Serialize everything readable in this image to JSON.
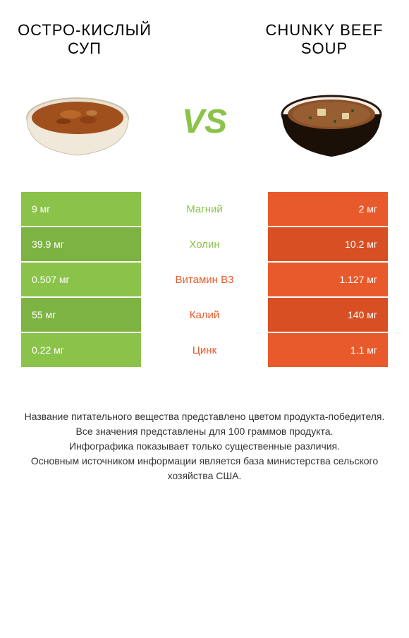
{
  "titles": {
    "left": "Остро-кислый суп",
    "right": "Chunky Beef Soup"
  },
  "vs_label": "VS",
  "colors": {
    "green": "#8bc34a",
    "green_dark": "#7cb342",
    "orange": "#e85a2c",
    "orange_dark": "#d84f24",
    "vs_color": "#8bc34a"
  },
  "rows": [
    {
      "left": "9 мг",
      "label": "Магний",
      "right": "2 мг",
      "left_color": "#8bc34a",
      "right_color": "#e85a2c",
      "label_color": "#8bc34a",
      "dark": false
    },
    {
      "left": "39.9 мг",
      "label": "Холин",
      "right": "10.2 мг",
      "left_color": "#7cb342",
      "right_color": "#d84f24",
      "label_color": "#8bc34a",
      "dark": true
    },
    {
      "left": "0.507 мг",
      "label": "Витамин B3",
      "right": "1.127 мг",
      "left_color": "#8bc34a",
      "right_color": "#e85a2c",
      "label_color": "#e85a2c",
      "dark": false
    },
    {
      "left": "55 мг",
      "label": "Калий",
      "right": "140 мг",
      "left_color": "#7cb342",
      "right_color": "#d84f24",
      "label_color": "#e85a2c",
      "dark": true
    },
    {
      "left": "0.22 мг",
      "label": "Цинк",
      "right": "1.1 мг",
      "left_color": "#8bc34a",
      "right_color": "#e85a2c",
      "label_color": "#e85a2c",
      "dark": false
    }
  ],
  "footer_lines": [
    "Название питательного вещества представлено цветом продукта-победителя.",
    "Все значения представлены для 100 граммов продукта.",
    "Инфографика показывает только существенные различия.",
    "Основным источником информации является база министерства сельского хозяйства США."
  ]
}
